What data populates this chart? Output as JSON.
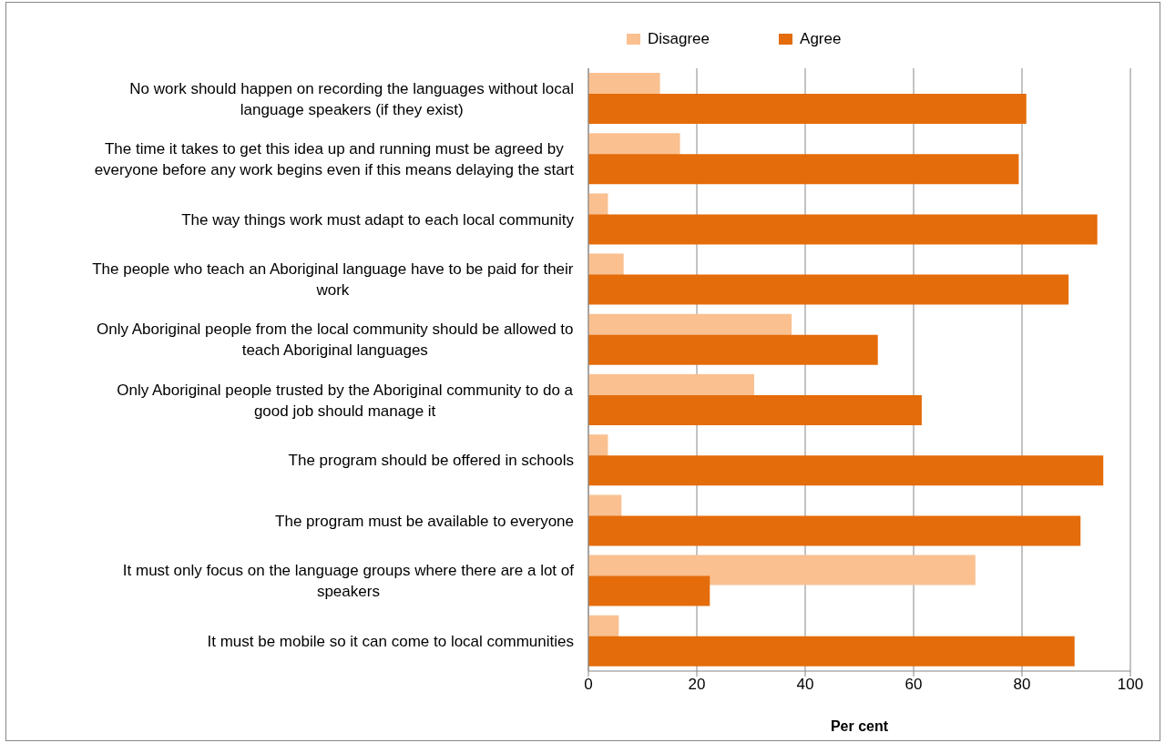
{
  "chart_data": {
    "type": "bar",
    "orientation": "horizontal",
    "xlabel": "Per cent",
    "categories": [
      "No work should happen on recording the languages without local language speakers (if they exist)",
      "The time it takes to get this idea up and running must be agreed by everyone before any work begins even if this means delaying the start",
      "The way things work must adapt to each local community",
      "The people who teach an Aboriginal language have to be paid for their work",
      "Only Aboriginal people from the local community should be allowed to teach Aboriginal languages",
      "Only Aboriginal people trusted by the Aboriginal community to do a good job should manage it",
      "The program should be offered in schools",
      "The program must be available to everyone",
      "It must only focus on the language groups where there are a lot of speakers",
      "It must be mobile so it can come to local communities"
    ],
    "series": [
      {
        "name": "Disagree",
        "color": "#fac090",
        "values": [
          13.2,
          16.9,
          3.6,
          6.5,
          37.5,
          30.6,
          3.6,
          6.1,
          71.4,
          5.6
        ]
      },
      {
        "name": "Agree",
        "color": "#e46c0a",
        "values": [
          80.8,
          79.4,
          93.9,
          88.6,
          53.4,
          61.5,
          95.0,
          90.8,
          22.4,
          89.7
        ]
      }
    ],
    "xlim": [
      0,
      100
    ],
    "xticks": [
      0,
      20,
      40,
      60,
      80,
      100
    ],
    "grid": "x",
    "legend": "top"
  }
}
